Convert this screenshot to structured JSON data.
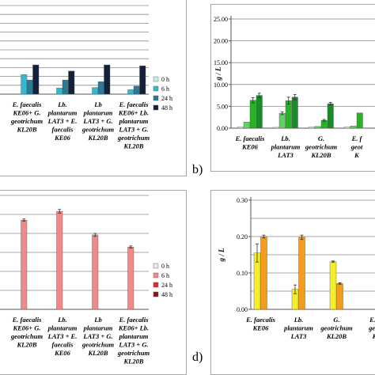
{
  "panel_labels": {
    "b": "b)",
    "d": "d)"
  },
  "chart_data": [
    {
      "id": "a",
      "type": "bar",
      "categories": [
        [
          "E. faecalis",
          "KE06+ G.",
          "geotrichum",
          "KL20B"
        ],
        [
          "Lb.",
          "plantarum",
          "LAT3 + E.",
          "faecalis",
          "KE06"
        ],
        [
          "Lb",
          "plantarum",
          "LAT3 + G.",
          "geotrichum",
          "KL20B"
        ],
        [
          "E. faecalis",
          "KE06+ Lb.",
          "plantarum",
          "LAT3 + G.",
          "geotrichum",
          "KL20B"
        ]
      ],
      "series": [
        {
          "name": "0 h",
          "color": "#c8eaf2",
          "values": [
            0,
            0,
            0,
            0
          ]
        },
        {
          "name": "6 h",
          "color": "#34b9d1",
          "values": [
            2.2,
            0.7,
            0.75,
            0.5
          ]
        },
        {
          "name": "24 h",
          "color": "#2a7a93",
          "values": [
            1.6,
            1.6,
            1.4,
            0.9
          ]
        },
        {
          "name": "48 h",
          "color": "#14213b",
          "values": [
            3.3,
            2.6,
            3.3,
            3.2
          ]
        }
      ],
      "ylim": [
        0,
        10
      ],
      "grid_step": 1,
      "legend": "right"
    },
    {
      "id": "b",
      "type": "bar",
      "categories": [
        [
          "E. faecalis",
          "KE06"
        ],
        [
          "Lb.",
          "plantarum",
          "LAT3"
        ],
        [
          "G.",
          "geotrichum",
          "KL20B"
        ],
        [
          "E. f",
          "geot",
          "K"
        ]
      ],
      "series": [
        {
          "name": "0 h",
          "color": "#d5f0d5",
          "values": [
            0.3,
            0.2,
            0.3,
            0.3
          ]
        },
        {
          "name": "6 h",
          "color": "#5ed35e",
          "values": [
            1.4,
            3.4,
            0.4,
            0.5
          ]
        },
        {
          "name": "24 h",
          "color": "#26b326",
          "values": [
            6.4,
            6.3,
            1.8,
            3.5
          ]
        },
        {
          "name": "48 h",
          "color": "#1a8a2a",
          "values": [
            7.5,
            7.1,
            5.6,
            0
          ]
        }
      ],
      "errors": [
        [
          0,
          0,
          0,
          0
        ],
        [
          0,
          0.3,
          0,
          0
        ],
        [
          0.6,
          0.8,
          0.2,
          0
        ],
        [
          0.5,
          0.6,
          0.3,
          0
        ]
      ],
      "ylabel": "g / L",
      "yticks": [
        "0.00",
        "5.00",
        "10.00",
        "15.00",
        "20.00",
        "25.00"
      ],
      "ylim": [
        0,
        25
      ],
      "grid_step": 5
    },
    {
      "id": "c",
      "type": "bar",
      "categories": [
        [
          "E. faecalis",
          "KE06+ G.",
          "geotrichum",
          "KL20B"
        ],
        [
          "Lb.",
          "plantarum",
          "LAT3 + E.",
          "faecalis",
          "KE06"
        ],
        [
          "Lb",
          "plantarum",
          "LAT3 + G.",
          "geotrichum",
          "KL20B"
        ],
        [
          "E. faecalis",
          "KE06+ Lb.",
          "plantarum",
          "LAT3 + G.",
          "geotrichum",
          "KL20B"
        ]
      ],
      "series": [
        {
          "name": "0 h",
          "color": "#fbe3e3",
          "values": [
            0,
            0,
            0,
            0
          ]
        },
        {
          "name": "6 h",
          "color": "#f08a8a",
          "values": [
            0.235,
            0.258,
            0.196,
            0.164
          ]
        },
        {
          "name": "24 h",
          "color": "#e02a2a",
          "values": [
            0,
            0,
            0,
            0
          ]
        },
        {
          "name": "48 h",
          "color": "#9a1010",
          "values": [
            0,
            0,
            0,
            0
          ]
        }
      ],
      "errors": [
        [
          0,
          0,
          0,
          0
        ],
        [
          0.003,
          0.005,
          0.004,
          0.003
        ],
        [
          0,
          0,
          0,
          0
        ],
        [
          0,
          0,
          0,
          0
        ]
      ],
      "ylim": [
        0,
        0.3
      ],
      "grid_step": 0.05,
      "legend": "right"
    },
    {
      "id": "d",
      "type": "bar",
      "categories": [
        [
          "E. faecalis",
          "KE06"
        ],
        [
          "Lb.",
          "plantarum",
          "LAT3"
        ],
        [
          "G.",
          "geotrichum",
          "KL20B"
        ],
        [
          "E. f",
          "geot",
          "K"
        ]
      ],
      "series": [
        {
          "name": "24 h",
          "color": "#f4ee2a",
          "values": [
            0.155,
            0.055,
            0.131,
            0
          ]
        },
        {
          "name": "48 h",
          "color": "#f39c1f",
          "values": [
            0.2,
            0.198,
            0.071,
            0
          ]
        }
      ],
      "errors": [
        [
          0.025,
          0.012,
          0.002,
          0
        ],
        [
          0.004,
          0.006,
          0.002,
          0
        ]
      ],
      "ylabel": "g / L",
      "yticks": [
        "0.00",
        "0.10",
        "0.20",
        "0.30"
      ],
      "ylim": [
        0,
        0.3
      ],
      "grid_step": 0.05
    }
  ]
}
